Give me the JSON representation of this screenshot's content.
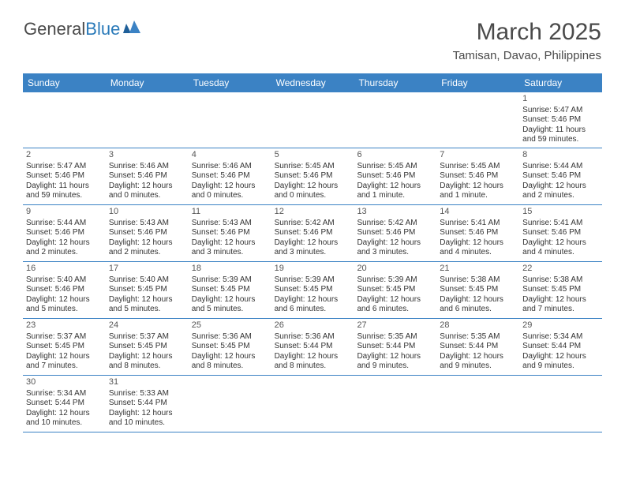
{
  "logo": {
    "word1": "General",
    "word2": "Blue"
  },
  "title": "March 2025",
  "location": "Tamisan, Davao, Philippines",
  "weekdays": [
    "Sunday",
    "Monday",
    "Tuesday",
    "Wednesday",
    "Thursday",
    "Friday",
    "Saturday"
  ],
  "colors": {
    "header_bg": "#3b82c4",
    "header_fg": "#ffffff",
    "text": "#333333",
    "day_num": "#555555",
    "title_color": "#4a4a4a",
    "border": "#3b82c4",
    "logo_blue": "#2a7ab9"
  },
  "weeks": [
    [
      null,
      null,
      null,
      null,
      null,
      null,
      {
        "n": "1",
        "sr": "Sunrise: 5:47 AM",
        "ss": "Sunset: 5:46 PM",
        "dl": "Daylight: 11 hours and 59 minutes."
      }
    ],
    [
      {
        "n": "2",
        "sr": "Sunrise: 5:47 AM",
        "ss": "Sunset: 5:46 PM",
        "dl": "Daylight: 11 hours and 59 minutes."
      },
      {
        "n": "3",
        "sr": "Sunrise: 5:46 AM",
        "ss": "Sunset: 5:46 PM",
        "dl": "Daylight: 12 hours and 0 minutes."
      },
      {
        "n": "4",
        "sr": "Sunrise: 5:46 AM",
        "ss": "Sunset: 5:46 PM",
        "dl": "Daylight: 12 hours and 0 minutes."
      },
      {
        "n": "5",
        "sr": "Sunrise: 5:45 AM",
        "ss": "Sunset: 5:46 PM",
        "dl": "Daylight: 12 hours and 0 minutes."
      },
      {
        "n": "6",
        "sr": "Sunrise: 5:45 AM",
        "ss": "Sunset: 5:46 PM",
        "dl": "Daylight: 12 hours and 1 minute."
      },
      {
        "n": "7",
        "sr": "Sunrise: 5:45 AM",
        "ss": "Sunset: 5:46 PM",
        "dl": "Daylight: 12 hours and 1 minute."
      },
      {
        "n": "8",
        "sr": "Sunrise: 5:44 AM",
        "ss": "Sunset: 5:46 PM",
        "dl": "Daylight: 12 hours and 2 minutes."
      }
    ],
    [
      {
        "n": "9",
        "sr": "Sunrise: 5:44 AM",
        "ss": "Sunset: 5:46 PM",
        "dl": "Daylight: 12 hours and 2 minutes."
      },
      {
        "n": "10",
        "sr": "Sunrise: 5:43 AM",
        "ss": "Sunset: 5:46 PM",
        "dl": "Daylight: 12 hours and 2 minutes."
      },
      {
        "n": "11",
        "sr": "Sunrise: 5:43 AM",
        "ss": "Sunset: 5:46 PM",
        "dl": "Daylight: 12 hours and 3 minutes."
      },
      {
        "n": "12",
        "sr": "Sunrise: 5:42 AM",
        "ss": "Sunset: 5:46 PM",
        "dl": "Daylight: 12 hours and 3 minutes."
      },
      {
        "n": "13",
        "sr": "Sunrise: 5:42 AM",
        "ss": "Sunset: 5:46 PM",
        "dl": "Daylight: 12 hours and 3 minutes."
      },
      {
        "n": "14",
        "sr": "Sunrise: 5:41 AM",
        "ss": "Sunset: 5:46 PM",
        "dl": "Daylight: 12 hours and 4 minutes."
      },
      {
        "n": "15",
        "sr": "Sunrise: 5:41 AM",
        "ss": "Sunset: 5:46 PM",
        "dl": "Daylight: 12 hours and 4 minutes."
      }
    ],
    [
      {
        "n": "16",
        "sr": "Sunrise: 5:40 AM",
        "ss": "Sunset: 5:46 PM",
        "dl": "Daylight: 12 hours and 5 minutes."
      },
      {
        "n": "17",
        "sr": "Sunrise: 5:40 AM",
        "ss": "Sunset: 5:45 PM",
        "dl": "Daylight: 12 hours and 5 minutes."
      },
      {
        "n": "18",
        "sr": "Sunrise: 5:39 AM",
        "ss": "Sunset: 5:45 PM",
        "dl": "Daylight: 12 hours and 5 minutes."
      },
      {
        "n": "19",
        "sr": "Sunrise: 5:39 AM",
        "ss": "Sunset: 5:45 PM",
        "dl": "Daylight: 12 hours and 6 minutes."
      },
      {
        "n": "20",
        "sr": "Sunrise: 5:39 AM",
        "ss": "Sunset: 5:45 PM",
        "dl": "Daylight: 12 hours and 6 minutes."
      },
      {
        "n": "21",
        "sr": "Sunrise: 5:38 AM",
        "ss": "Sunset: 5:45 PM",
        "dl": "Daylight: 12 hours and 6 minutes."
      },
      {
        "n": "22",
        "sr": "Sunrise: 5:38 AM",
        "ss": "Sunset: 5:45 PM",
        "dl": "Daylight: 12 hours and 7 minutes."
      }
    ],
    [
      {
        "n": "23",
        "sr": "Sunrise: 5:37 AM",
        "ss": "Sunset: 5:45 PM",
        "dl": "Daylight: 12 hours and 7 minutes."
      },
      {
        "n": "24",
        "sr": "Sunrise: 5:37 AM",
        "ss": "Sunset: 5:45 PM",
        "dl": "Daylight: 12 hours and 8 minutes."
      },
      {
        "n": "25",
        "sr": "Sunrise: 5:36 AM",
        "ss": "Sunset: 5:45 PM",
        "dl": "Daylight: 12 hours and 8 minutes."
      },
      {
        "n": "26",
        "sr": "Sunrise: 5:36 AM",
        "ss": "Sunset: 5:44 PM",
        "dl": "Daylight: 12 hours and 8 minutes."
      },
      {
        "n": "27",
        "sr": "Sunrise: 5:35 AM",
        "ss": "Sunset: 5:44 PM",
        "dl": "Daylight: 12 hours and 9 minutes."
      },
      {
        "n": "28",
        "sr": "Sunrise: 5:35 AM",
        "ss": "Sunset: 5:44 PM",
        "dl": "Daylight: 12 hours and 9 minutes."
      },
      {
        "n": "29",
        "sr": "Sunrise: 5:34 AM",
        "ss": "Sunset: 5:44 PM",
        "dl": "Daylight: 12 hours and 9 minutes."
      }
    ],
    [
      {
        "n": "30",
        "sr": "Sunrise: 5:34 AM",
        "ss": "Sunset: 5:44 PM",
        "dl": "Daylight: 12 hours and 10 minutes."
      },
      {
        "n": "31",
        "sr": "Sunrise: 5:33 AM",
        "ss": "Sunset: 5:44 PM",
        "dl": "Daylight: 12 hours and 10 minutes."
      },
      null,
      null,
      null,
      null,
      null
    ]
  ]
}
